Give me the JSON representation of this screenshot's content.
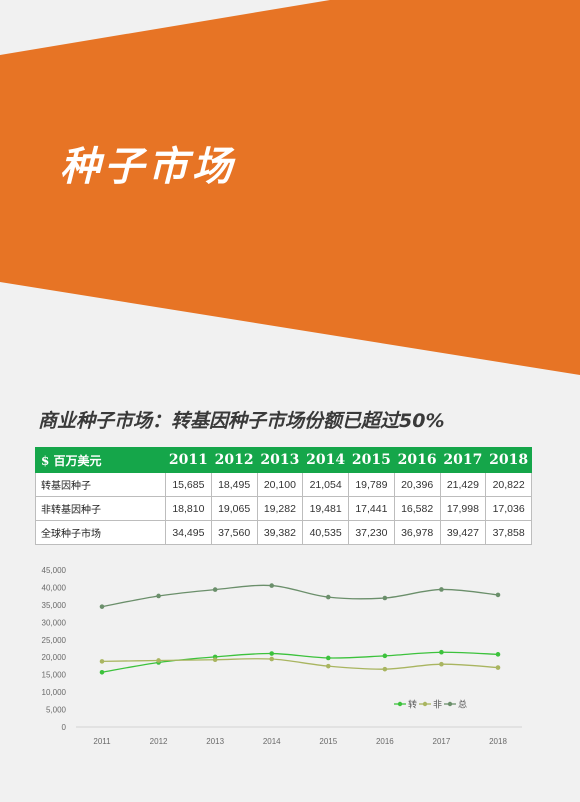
{
  "page_title": "种子市场",
  "section_heading": "商业种子市场：转基因种子市场份额已超过50%",
  "colors": {
    "banner": "#e77425",
    "table_header": "#15a64a"
  },
  "table": {
    "header": [
      "$ 百万美元",
      "2011",
      "2012",
      "2013",
      "2014",
      "2015",
      "2016",
      "2017",
      "2018"
    ],
    "rows": [
      {
        "label": "转基因种子",
        "values": [
          "15,685",
          "18,495",
          "20,100",
          "21,054",
          "19,789",
          "20,396",
          "21,429",
          "20,822"
        ]
      },
      {
        "label": "非转基因种子",
        "values": [
          "18,810",
          "19,065",
          "19,282",
          "19,481",
          "17,441",
          "16,582",
          "17,998",
          "17,036"
        ]
      },
      {
        "label": "全球种子市场",
        "values": [
          "34,495",
          "37,560",
          "39,382",
          "40,535",
          "37,230",
          "36,978",
          "39,427",
          "37,858"
        ]
      }
    ]
  },
  "chart_data": {
    "type": "line",
    "x": [
      "2011",
      "2012",
      "2013",
      "2014",
      "2015",
      "2016",
      "2017",
      "2018"
    ],
    "ylim": [
      0,
      45000
    ],
    "yticks": [
      0,
      5000,
      10000,
      15000,
      20000,
      25000,
      30000,
      35000,
      40000,
      45000
    ],
    "ytick_labels": [
      "0",
      "5,000",
      "10,000",
      "15,000",
      "20,000",
      "25,000",
      "30,000",
      "35,000",
      "40,000",
      "45,000"
    ],
    "grid": false,
    "legend": "bottom-right",
    "series": [
      {
        "name": "转",
        "color": "#3cc23c",
        "values": [
          15685,
          18495,
          20100,
          21054,
          19789,
          20396,
          21429,
          20822
        ]
      },
      {
        "name": "非",
        "color": "#a9b560",
        "values": [
          18810,
          19065,
          19282,
          19481,
          17441,
          16582,
          17998,
          17036
        ]
      },
      {
        "name": "总",
        "color": "#6b8f6b",
        "values": [
          34495,
          37560,
          39382,
          40535,
          37230,
          36978,
          39427,
          37858
        ]
      }
    ]
  }
}
